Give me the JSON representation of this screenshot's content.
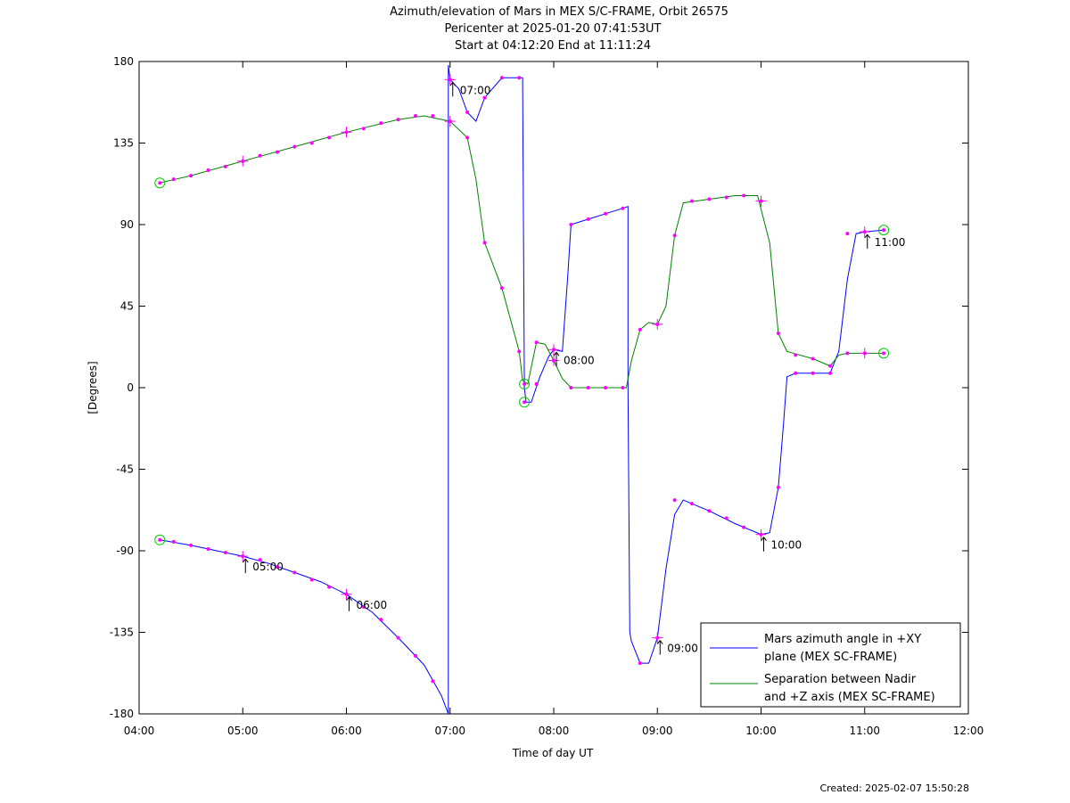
{
  "chart_data": {
    "type": "line",
    "title_lines": [
      "Azimuth/elevation of Mars in MEX S/C-FRAME,  Orbit 26575",
      "Pericenter at 2025-01-20 07:41:53UT",
      "Start at 04:12:20 End at 11:11:24"
    ],
    "xlabel": "Time of day UT",
    "ylabel": "[Degrees]",
    "xlim": [
      "04:00",
      "12:00"
    ],
    "ylim": [
      -180,
      180
    ],
    "x_ticks": [
      "04:00",
      "05:00",
      "06:00",
      "07:00",
      "08:00",
      "09:00",
      "10:00",
      "11:00",
      "12:00"
    ],
    "y_ticks": [
      180,
      135,
      90,
      45,
      0,
      -45,
      -90,
      -135,
      -180
    ],
    "legend_position": "bottom-right",
    "series": [
      {
        "name": "Mars azimuth angle in +XY plane (MEX SC-FRAME)",
        "legend_lines": [
          "Mars azimuth angle in +XY",
          "plane (MEX SC-FRAME)"
        ],
        "color": "#0000ff",
        "points": [
          [
            "04:12",
            -84
          ],
          [
            "04:30",
            -87
          ],
          [
            "04:45",
            -90
          ],
          [
            "05:00",
            -93
          ],
          [
            "05:15",
            -97
          ],
          [
            "05:30",
            -102
          ],
          [
            "05:45",
            -107
          ],
          [
            "06:00",
            -114
          ],
          [
            "06:15",
            -124
          ],
          [
            "06:30",
            -138
          ],
          [
            "06:45",
            -153
          ],
          [
            "06:55",
            -170
          ],
          [
            "06:59",
            -180
          ],
          [
            "06:59",
            178
          ],
          [
            "07:00",
            170
          ],
          [
            "07:05",
            165
          ],
          [
            "07:10",
            152
          ],
          [
            "07:15",
            147
          ],
          [
            "07:20",
            160
          ],
          [
            "07:30",
            171
          ],
          [
            "07:42",
            171
          ],
          [
            "07:43",
            0
          ],
          [
            "07:44",
            -8
          ],
          [
            "07:47",
            -8
          ],
          [
            "07:52",
            6
          ],
          [
            "07:57",
            17
          ],
          [
            "08:00",
            21
          ],
          [
            "08:05",
            20
          ],
          [
            "08:08",
            60
          ],
          [
            "08:10",
            90
          ],
          [
            "08:20",
            93
          ],
          [
            "08:30",
            96
          ],
          [
            "08:40",
            99
          ],
          [
            "08:43",
            100
          ],
          [
            "08:43",
            0
          ],
          [
            "08:44",
            -135
          ],
          [
            "08:45",
            -140
          ],
          [
            "08:50",
            -152
          ],
          [
            "08:55",
            -152
          ],
          [
            "09:00",
            -138
          ],
          [
            "09:05",
            -100
          ],
          [
            "09:10",
            -70
          ],
          [
            "09:15",
            -62
          ],
          [
            "09:30",
            -68
          ],
          [
            "09:45",
            -75
          ],
          [
            "10:00",
            -81
          ],
          [
            "10:05",
            -80
          ],
          [
            "10:10",
            -55
          ],
          [
            "10:13",
            -20
          ],
          [
            "10:15",
            6
          ],
          [
            "10:20",
            8
          ],
          [
            "10:40",
            8
          ],
          [
            "10:45",
            20
          ],
          [
            "10:50",
            60
          ],
          [
            "10:55",
            85
          ],
          [
            "11:00",
            86
          ],
          [
            "11:11",
            87
          ]
        ]
      },
      {
        "name": "Separation between Nadir and +Z axis (MEX SC-FRAME)",
        "legend_lines": [
          "Separation between Nadir",
          "and +Z axis (MEX SC-FRAME)"
        ],
        "color": "#008000",
        "points": [
          [
            "04:12",
            113
          ],
          [
            "04:30",
            117
          ],
          [
            "05:00",
            125
          ],
          [
            "05:30",
            133
          ],
          [
            "06:00",
            141
          ],
          [
            "06:30",
            148
          ],
          [
            "06:45",
            150
          ],
          [
            "07:00",
            147
          ],
          [
            "07:10",
            138
          ],
          [
            "07:15",
            115
          ],
          [
            "07:20",
            80
          ],
          [
            "07:30",
            55
          ],
          [
            "07:40",
            20
          ],
          [
            "07:42",
            4
          ],
          [
            "07:45",
            2
          ],
          [
            "07:50",
            25
          ],
          [
            "07:55",
            24
          ],
          [
            "08:00",
            15
          ],
          [
            "08:05",
            5
          ],
          [
            "08:10",
            0
          ],
          [
            "08:42",
            0
          ],
          [
            "08:45",
            15
          ],
          [
            "08:50",
            32
          ],
          [
            "08:55",
            36
          ],
          [
            "09:00",
            35
          ],
          [
            "09:05",
            45
          ],
          [
            "09:10",
            84
          ],
          [
            "09:15",
            102
          ],
          [
            "09:30",
            104
          ],
          [
            "09:45",
            106
          ],
          [
            "09:58",
            106
          ],
          [
            "10:05",
            80
          ],
          [
            "10:10",
            30
          ],
          [
            "10:15",
            20
          ],
          [
            "10:30",
            16
          ],
          [
            "10:40",
            12
          ],
          [
            "10:45",
            18
          ],
          [
            "10:50",
            19
          ],
          [
            "11:00",
            19
          ],
          [
            "11:11",
            19
          ]
        ]
      }
    ],
    "markers_large": [
      [
        "05:00",
        -93
      ],
      [
        "06:00",
        -114
      ],
      [
        "07:00",
        170
      ],
      [
        "08:00",
        21
      ],
      [
        "09:00",
        -138
      ],
      [
        "10:00",
        -81
      ],
      [
        "11:00",
        86
      ],
      [
        "05:00",
        125
      ],
      [
        "06:00",
        141
      ],
      [
        "07:00",
        147
      ],
      [
        "08:00",
        15
      ],
      [
        "09:00",
        35
      ],
      [
        "10:00",
        103
      ],
      [
        "11:00",
        19
      ]
    ],
    "markers_small": [
      [
        "04:20",
        -85
      ],
      [
        "04:30",
        -87
      ],
      [
        "04:40",
        -89
      ],
      [
        "04:50",
        -91
      ],
      [
        "05:10",
        -95
      ],
      [
        "05:20",
        -99
      ],
      [
        "05:30",
        -102
      ],
      [
        "05:40",
        -106
      ],
      [
        "05:50",
        -110
      ],
      [
        "06:10",
        -121
      ],
      [
        "06:20",
        -128
      ],
      [
        "06:30",
        -138
      ],
      [
        "06:40",
        -148
      ],
      [
        "06:50",
        -162
      ],
      [
        "07:10",
        152
      ],
      [
        "07:20",
        160
      ],
      [
        "07:30",
        171
      ],
      [
        "07:40",
        171
      ],
      [
        "07:50",
        2
      ],
      [
        "08:10",
        90
      ],
      [
        "08:20",
        93
      ],
      [
        "08:30",
        96
      ],
      [
        "08:40",
        99
      ],
      [
        "08:50",
        -152
      ],
      [
        "09:10",
        -62
      ],
      [
        "09:20",
        -64
      ],
      [
        "09:30",
        -68
      ],
      [
        "09:40",
        -72
      ],
      [
        "09:50",
        -77
      ],
      [
        "10:10",
        -55
      ],
      [
        "10:20",
        8
      ],
      [
        "10:30",
        8
      ],
      [
        "10:40",
        8
      ],
      [
        "10:50",
        85
      ],
      [
        "04:20",
        115
      ],
      [
        "04:30",
        117
      ],
      [
        "04:40",
        120
      ],
      [
        "04:50",
        122
      ],
      [
        "05:10",
        128
      ],
      [
        "05:20",
        130
      ],
      [
        "05:30",
        133
      ],
      [
        "05:40",
        135
      ],
      [
        "05:50",
        138
      ],
      [
        "06:10",
        143
      ],
      [
        "06:20",
        146
      ],
      [
        "06:30",
        148
      ],
      [
        "06:40",
        150
      ],
      [
        "06:50",
        150
      ],
      [
        "07:10",
        138
      ],
      [
        "07:20",
        80
      ],
      [
        "07:30",
        55
      ],
      [
        "07:40",
        20
      ],
      [
        "07:50",
        25
      ],
      [
        "08:10",
        0
      ],
      [
        "08:20",
        0
      ],
      [
        "08:30",
        0
      ],
      [
        "08:40",
        0
      ],
      [
        "08:50",
        32
      ],
      [
        "09:10",
        84
      ],
      [
        "09:20",
        103
      ],
      [
        "09:30",
        104
      ],
      [
        "09:40",
        105
      ],
      [
        "09:50",
        106
      ],
      [
        "10:10",
        30
      ],
      [
        "10:20",
        18
      ],
      [
        "10:30",
        16
      ],
      [
        "10:40",
        12
      ],
      [
        "10:50",
        19
      ]
    ],
    "markers_circle": [
      [
        "04:12",
        -84
      ],
      [
        "04:12",
        113
      ],
      [
        "07:43",
        2
      ],
      [
        "07:43",
        -8
      ],
      [
        "11:11",
        87
      ],
      [
        "11:11",
        19
      ]
    ],
    "hour_annotations": [
      {
        "label": "05:00",
        "x": "05:00",
        "y": -93
      },
      {
        "label": "06:00",
        "x": "06:00",
        "y": -114
      },
      {
        "label": "07:00",
        "x": "07:00",
        "y": 170
      },
      {
        "label": "08:00",
        "x": "08:00",
        "y": 21
      },
      {
        "label": "09:00",
        "x": "09:00",
        "y": -138
      },
      {
        "label": "10:00",
        "x": "10:00",
        "y": -81
      },
      {
        "label": "11:00",
        "x": "11:00",
        "y": 86
      }
    ],
    "created": "Created: 2025-02-07 15:50:28"
  }
}
